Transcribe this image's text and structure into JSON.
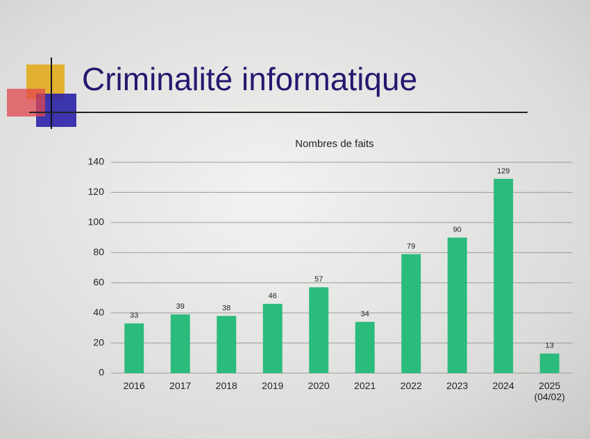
{
  "slide_title": "Criminalité informatique",
  "chart_data": {
    "type": "bar",
    "title": "Nombres de faits",
    "categories": [
      "2016",
      "2017",
      "2018",
      "2019",
      "2020",
      "2021",
      "2022",
      "2023",
      "2024",
      "2025 (04/02)"
    ],
    "values": [
      33,
      39,
      38,
      46,
      57,
      34,
      79,
      90,
      129,
      13
    ],
    "color": "#2bbb7c",
    "ylim": [
      0,
      140
    ],
    "yticks": [
      0,
      20,
      40,
      60,
      80,
      100,
      120,
      140
    ],
    "grid": true
  }
}
